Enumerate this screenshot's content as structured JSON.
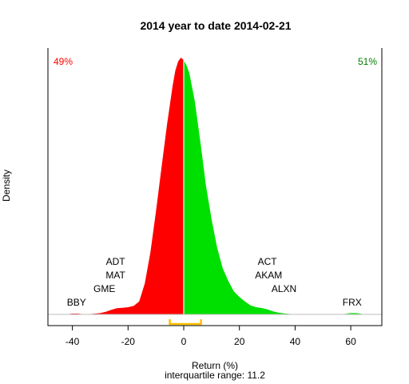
{
  "chart_data": {
    "type": "area",
    "title": "2014  year to date 2014-02-21",
    "xlabel": "Return (%)",
    "ylabel": "Density",
    "subtitle": "interquartile range: 11.2",
    "xlim": [
      -50,
      70
    ],
    "xticks": [
      -40,
      -20,
      0,
      20,
      40,
      60
    ],
    "left_pct": "49%",
    "right_pct": "51%",
    "split_x": 0,
    "iqr": [
      -5,
      6.2
    ],
    "colors": {
      "negative": "#ff0000",
      "positive": "#00e000",
      "left_pct": "#ff0000",
      "right_pct": "#008000",
      "iqr_bracket": "#ffc000",
      "baseline": "#bebebe"
    },
    "density": {
      "x": [
        -50,
        -45,
        -42,
        -40,
        -38,
        -36,
        -33,
        -30,
        -28,
        -26,
        -24,
        -22,
        -20,
        -18,
        -16,
        -14,
        -12,
        -10,
        -8,
        -6,
        -4,
        -3,
        -2,
        -1,
        0,
        1,
        2,
        4,
        6,
        8,
        10,
        12,
        14,
        16,
        18,
        20,
        22,
        24,
        26,
        28,
        30,
        32,
        34,
        36,
        38,
        40,
        44,
        48,
        52,
        56,
        58,
        60,
        62,
        64,
        66,
        70
      ],
      "y": [
        0,
        0,
        0.001,
        0.003,
        0.003,
        0.001,
        0.002,
        0.005,
        0.01,
        0.018,
        0.024,
        0.026,
        0.028,
        0.033,
        0.05,
        0.12,
        0.24,
        0.4,
        0.57,
        0.74,
        0.89,
        0.95,
        0.985,
        1.0,
        0.99,
        0.97,
        0.94,
        0.83,
        0.67,
        0.5,
        0.37,
        0.26,
        0.18,
        0.13,
        0.09,
        0.068,
        0.05,
        0.035,
        0.028,
        0.025,
        0.02,
        0.012,
        0.007,
        0.004,
        0.002,
        0.001,
        0,
        0,
        0,
        0,
        0.002,
        0.005,
        0.005,
        0.002,
        0,
        0
      ]
    },
    "annotations": [
      {
        "text": "BBY",
        "x": -38.5,
        "level": 1
      },
      {
        "text": "GME",
        "x": -28.5,
        "level": 2
      },
      {
        "text": "MAT",
        "x": -24.5,
        "level": 3
      },
      {
        "text": "ADT",
        "x": -24.5,
        "level": 4
      },
      {
        "text": "ALXN",
        "x": 36,
        "level": 2
      },
      {
        "text": "AKAM",
        "x": 30.5,
        "level": 3
      },
      {
        "text": "ACT",
        "x": 30,
        "level": 4
      },
      {
        "text": "FRX",
        "x": 60.5,
        "level": 1
      }
    ]
  }
}
